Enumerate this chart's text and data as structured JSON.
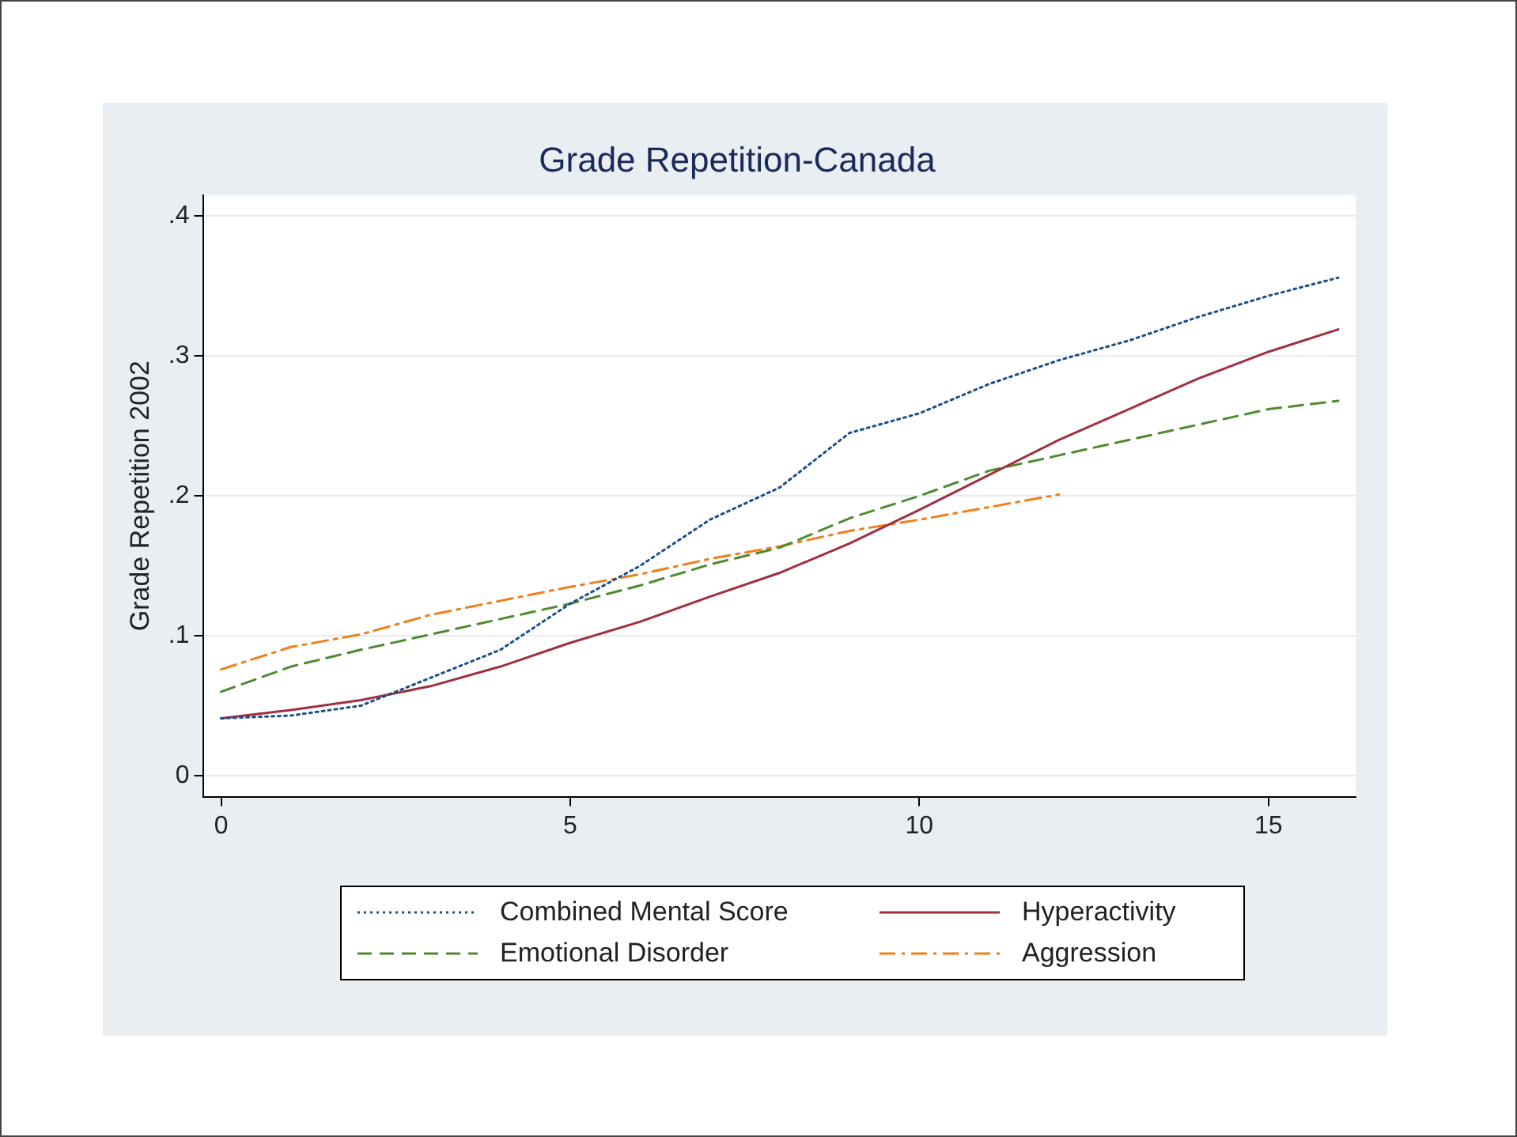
{
  "chart_data": {
    "type": "line",
    "title": "Grade Repetition-Canada",
    "ylabel": "Grade Repetition 2002",
    "x": [
      0,
      1,
      2,
      3,
      4,
      5,
      6,
      7,
      8,
      9,
      10,
      11,
      12,
      13,
      14,
      15,
      16
    ],
    "series": [
      {
        "name": "Combined Mental Score",
        "color": "#1a4f8a",
        "line_style": "dotted",
        "values": [
          0.041,
          0.043,
          0.05,
          0.07,
          0.09,
          0.123,
          0.15,
          0.183,
          0.206,
          0.245,
          0.259,
          0.28,
          0.297,
          0.311,
          0.328,
          0.343,
          0.356
        ]
      },
      {
        "name": "Hyperactivity",
        "color": "#a03040",
        "line_style": "solid",
        "values": [
          0.041,
          0.047,
          0.054,
          0.064,
          0.078,
          0.095,
          0.11,
          0.128,
          0.145,
          0.166,
          0.19,
          0.215,
          0.24,
          0.262,
          0.284,
          0.303,
          0.319
        ]
      },
      {
        "name": "Emotional Disorder",
        "color": "#4e8a2e",
        "line_style": "dashed",
        "values": [
          0.06,
          0.078,
          0.09,
          0.101,
          0.112,
          0.123,
          0.136,
          0.151,
          0.163,
          0.184,
          0.2,
          0.218,
          0.229,
          0.24,
          0.251,
          0.262,
          0.268
        ]
      },
      {
        "name": "Aggression",
        "color": "#f07f1a",
        "line_style": "dashdot",
        "values": [
          0.076,
          0.092,
          0.101,
          0.115,
          0.125,
          0.135,
          0.144,
          0.155,
          0.164,
          0.175,
          0.183,
          0.192,
          0.201,
          null,
          null,
          null,
          null
        ]
      }
    ],
    "xlim": [
      -0.25,
      16.25
    ],
    "xticks": [
      0,
      5,
      10,
      15
    ],
    "ylim": [
      -0.015,
      0.415
    ],
    "yticks": [
      {
        "value": 0,
        "label": "0"
      },
      {
        "value": 0.1,
        "label": ".1"
      },
      {
        "value": 0.2,
        "label": ".2"
      },
      {
        "value": 0.3,
        "label": ".3"
      },
      {
        "value": 0.4,
        "label": ".4"
      }
    ],
    "grid": "y",
    "legend": "bottom",
    "marker": "none"
  }
}
